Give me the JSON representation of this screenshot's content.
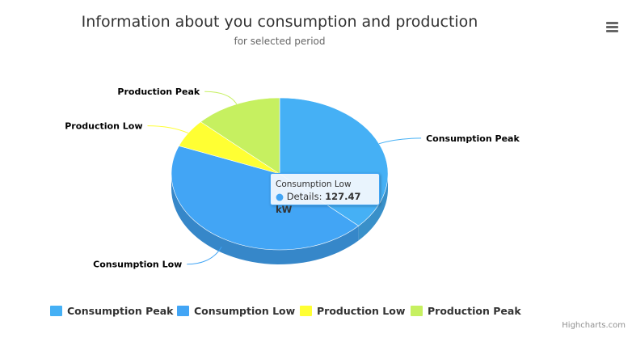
{
  "title": "Information about you consumption and production",
  "subtitle": "for selected period",
  "credits": "Highcharts.com",
  "menu_icon": "hamburger-menu-icon",
  "tooltip": {
    "series_name": "Consumption Low",
    "point_label": "Details:",
    "point_value": "127.47 kW"
  },
  "chart_data": {
    "type": "pie",
    "title": "Information about you consumption and production",
    "subtitle": "for selected period",
    "unit": "kW",
    "slices": [
      {
        "name": "Consumption Peak",
        "value": 37,
        "color": "#45b0f5"
      },
      {
        "name": "Consumption Low",
        "value": 44,
        "color": "#42a5f5"
      },
      {
        "name": "Production Low",
        "value": 6,
        "color": "#ffff33"
      },
      {
        "name": "Production Peak",
        "value": 13,
        "color": "#c6f060"
      }
    ],
    "start_angle_deg": 0,
    "depth_3d": true,
    "hovered_slice": "Consumption Low",
    "legend_position": "bottom",
    "data_labels": true
  }
}
